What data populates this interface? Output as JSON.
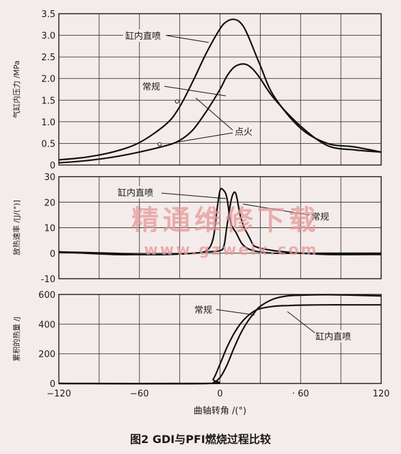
{
  "figure": {
    "caption": "图2  GDI与PFI燃烧过程比较",
    "watermark_cn": "精通维修下载",
    "watermark_url": "www.gzweix.com",
    "xlabel": "曲轴转角 /(°)",
    "x_ticks": [
      "−120",
      "−60",
      "0",
      "· 60",
      "120"
    ]
  },
  "chart_data": [
    {
      "type": "line",
      "ylabel": "气缸内压力 /MPa",
      "xlim": [
        -120,
        120
      ],
      "ylim": [
        0,
        3.5
      ],
      "y_ticks": [
        "0",
        "0.5",
        "1.0",
        "1.5",
        "2.0",
        "2.5",
        "3.0",
        "3.5"
      ],
      "grid": true,
      "annotations": [
        "缸内直喷",
        "常规",
        "点火"
      ],
      "series": [
        {
          "name": "缸内直喷",
          "x": [
            -120,
            -100,
            -80,
            -60,
            -40,
            -30,
            -20,
            -10,
            0,
            5,
            10,
            15,
            20,
            30,
            40,
            60,
            80,
            100,
            120
          ],
          "y": [
            0.12,
            0.18,
            0.3,
            0.52,
            0.95,
            1.35,
            1.95,
            2.6,
            3.15,
            3.32,
            3.37,
            3.3,
            3.05,
            2.3,
            1.6,
            0.85,
            0.5,
            0.42,
            0.3
          ]
        },
        {
          "name": "常规",
          "x": [
            -120,
            -100,
            -80,
            -60,
            -40,
            -30,
            -20,
            -10,
            0,
            5,
            10,
            15,
            20,
            25,
            30,
            40,
            60,
            80,
            100,
            120
          ],
          "y": [
            0.05,
            0.1,
            0.18,
            0.3,
            0.45,
            0.57,
            0.82,
            1.25,
            1.75,
            2.05,
            2.25,
            2.33,
            2.32,
            2.2,
            2.0,
            1.55,
            0.9,
            0.45,
            0.35,
            0.3
          ]
        }
      ]
    },
    {
      "type": "line",
      "ylabel": "放热速率 /[J/(°)]",
      "xlim": [
        -120,
        120
      ],
      "ylim": [
        -10,
        30
      ],
      "y_ticks": [
        "-10",
        "0",
        "10",
        "20",
        "30"
      ],
      "grid": true,
      "annotations": [
        "缸内直喷",
        "常规"
      ],
      "series": [
        {
          "name": "缸内直喷",
          "x": [
            -120,
            -80,
            -60,
            -40,
            -20,
            -10,
            -5,
            -2,
            0,
            2,
            5,
            8,
            12,
            16,
            20,
            25,
            30,
            40,
            60,
            80,
            120
          ],
          "y": [
            0.5,
            0,
            -0.5,
            -0.5,
            0,
            1,
            6,
            18,
            24.5,
            25,
            22,
            12,
            8,
            4,
            2,
            1,
            0.5,
            0,
            0,
            0,
            0
          ]
        },
        {
          "name": "常规",
          "x": [
            -120,
            -80,
            -60,
            -40,
            -20,
            -10,
            0,
            3,
            5,
            8,
            10,
            12,
            15,
            18,
            20,
            23,
            25,
            30,
            40,
            60,
            80,
            120
          ],
          "y": [
            0.5,
            -0.5,
            -0.5,
            -0.5,
            0,
            0.5,
            1,
            3,
            10,
            20,
            23.5,
            23,
            15,
            10,
            8,
            5,
            3,
            2,
            1,
            0,
            -0.5,
            -0.5
          ]
        }
      ]
    },
    {
      "type": "line",
      "ylabel": "累积的热量 /J",
      "xlim": [
        -120,
        120
      ],
      "ylim": [
        0,
        600
      ],
      "y_ticks": [
        "0",
        "200",
        "400",
        "600"
      ],
      "grid": true,
      "annotations": [
        "常规",
        "缸内直喷"
      ],
      "series": [
        {
          "name": "常规",
          "x": [
            -120,
            -10,
            -5,
            0,
            5,
            10,
            15,
            20,
            25,
            30,
            40,
            50,
            60,
            80,
            100,
            120
          ],
          "y": [
            0,
            0,
            5,
            40,
            120,
            230,
            330,
            410,
            470,
            520,
            570,
            590,
            595,
            598,
            595,
            590
          ]
        },
        {
          "name": "缸内直喷",
          "x": [
            -120,
            -10,
            -5,
            0,
            5,
            10,
            15,
            20,
            25,
            30,
            40,
            50,
            60,
            80,
            100,
            120
          ],
          "y": [
            0,
            0,
            30,
            130,
            240,
            330,
            400,
            450,
            485,
            505,
            520,
            525,
            528,
            530,
            530,
            530
          ]
        }
      ]
    }
  ]
}
